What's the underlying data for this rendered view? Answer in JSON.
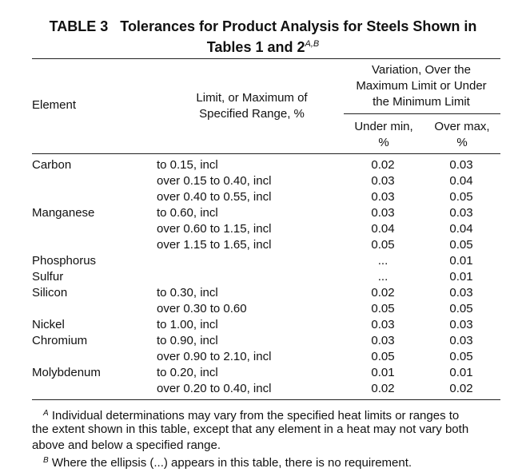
{
  "title": {
    "label": "TABLE 3",
    "text": "Tolerances for Product Analysis for Steels Shown in",
    "line2": "Tables 1 and 2",
    "sup": "A,B"
  },
  "header": {
    "element": "Element",
    "limit_line1": "Limit, or Maximum of",
    "limit_line2": "Specified Range, %",
    "variation_line1": "Variation, Over the",
    "variation_line2": "Maximum Limit or Under",
    "variation_line3": "the Minimum Limit",
    "under_line1": "Under min,",
    "under_line2": "%",
    "over_line1": "Over max,",
    "over_line2": "%"
  },
  "rows": [
    {
      "element": "Carbon",
      "limit": "to 0.15, incl",
      "under": "0.02",
      "over": "0.03"
    },
    {
      "element": "",
      "limit": "over 0.15 to 0.40, incl",
      "under": "0.03",
      "over": "0.04"
    },
    {
      "element": "",
      "limit": "over 0.40 to 0.55, incl",
      "under": "0.03",
      "over": "0.05"
    },
    {
      "element": "Manganese",
      "limit": "to 0.60, incl",
      "under": "0.03",
      "over": "0.03"
    },
    {
      "element": "",
      "limit": "over 0.60 to 1.15, incl",
      "under": "0.04",
      "over": "0.04"
    },
    {
      "element": "",
      "limit": "over 1.15 to 1.65, incl",
      "under": "0.05",
      "over": "0.05"
    },
    {
      "element": "Phosphorus",
      "limit": "",
      "under": "...",
      "over": "0.01"
    },
    {
      "element": "Sulfur",
      "limit": "",
      "under": "...",
      "over": "0.01"
    },
    {
      "element": "Silicon",
      "limit": "to 0.30, incl",
      "under": "0.02",
      "over": "0.03"
    },
    {
      "element": "",
      "limit": "over 0.30 to 0.60",
      "under": "0.05",
      "over": "0.05"
    },
    {
      "element": "Nickel",
      "limit": "to 1.00, incl",
      "under": "0.03",
      "over": "0.03"
    },
    {
      "element": "Chromium",
      "limit": "to 0.90, incl",
      "under": "0.03",
      "over": "0.03"
    },
    {
      "element": "",
      "limit": "over 0.90 to 2.10, incl",
      "under": "0.05",
      "over": "0.05"
    },
    {
      "element": "Molybdenum",
      "limit": "to 0.20, incl",
      "under": "0.01",
      "over": "0.01"
    },
    {
      "element": "",
      "limit": "over 0.20 to 0.40, incl",
      "under": "0.02",
      "over": "0.02"
    }
  ],
  "footnotes": {
    "a_mark": "A",
    "a_line1": "Individual determinations may vary from the specified heat limits or ranges to",
    "a_line2": "the extent shown in this table, except that any element in a heat may not vary both",
    "a_line3": "above and below a specified range.",
    "b_mark": "B",
    "b_text": "Where the ellipsis (...) appears in this table, there is no requirement."
  }
}
